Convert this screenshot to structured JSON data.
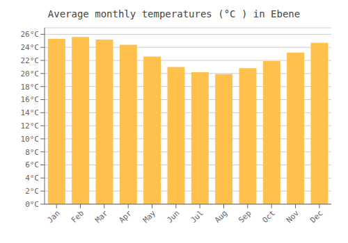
{
  "chart_data": {
    "type": "bar",
    "title": "Average monthly temperatures (°C ) in Ebene",
    "categories": [
      "Jan",
      "Feb",
      "Mar",
      "Apr",
      "May",
      "Jun",
      "Jul",
      "Aug",
      "Sep",
      "Oct",
      "Nov",
      "Dec"
    ],
    "values": [
      25.3,
      25.6,
      25.2,
      24.4,
      22.6,
      21.0,
      20.2,
      19.9,
      20.8,
      21.9,
      23.2,
      24.7
    ],
    "color": "#FFC04C",
    "ylim": [
      0,
      27
    ],
    "yticks": [
      {
        "value": 0,
        "label": "0°C"
      },
      {
        "value": 2,
        "label": "2°C"
      },
      {
        "value": 4,
        "label": "4°C"
      },
      {
        "value": 6,
        "label": "6°C"
      },
      {
        "value": 8,
        "label": "8°C"
      },
      {
        "value": 10,
        "label": "10°C"
      },
      {
        "value": 12,
        "label": "12°C"
      },
      {
        "value": 14,
        "label": "14°C"
      },
      {
        "value": 16,
        "label": "16°C"
      },
      {
        "value": 18,
        "label": "18°C"
      },
      {
        "value": 20,
        "label": "20°C"
      },
      {
        "value": 22,
        "label": "22°C"
      },
      {
        "value": 24,
        "label": "24°C"
      },
      {
        "value": 26,
        "label": "26°C"
      }
    ],
    "grid": true
  }
}
